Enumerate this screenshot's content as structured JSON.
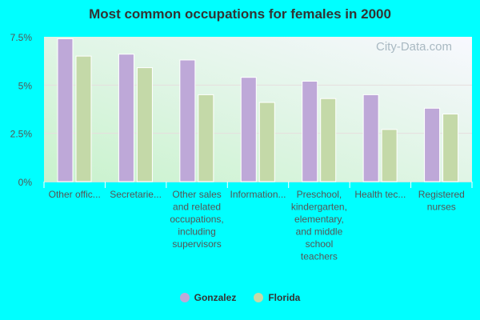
{
  "chart_data": {
    "type": "bar",
    "title": "Most common occupations for females in 2000",
    "categories": [
      "Other offic...",
      "Secretarie...",
      "Other sales and related occupations, including supervisors",
      "Information...",
      "Preschool, kindergarten, elementary, and middle school teachers",
      "Health tec...",
      "Registered nurses"
    ],
    "series": [
      {
        "name": "Gonzalez",
        "color": "#bea8d8",
        "values": [
          7.4,
          6.6,
          6.3,
          5.4,
          5.2,
          4.5,
          3.8
        ]
      },
      {
        "name": "Florida",
        "color": "#c4d9a8",
        "values": [
          6.5,
          5.9,
          4.5,
          4.1,
          4.3,
          2.7,
          3.5
        ]
      }
    ],
    "yticks": [
      "0%",
      "2.5%",
      "5%",
      "7.5%"
    ],
    "ylim": [
      0,
      7.5
    ],
    "grid": true,
    "legend": "bottom",
    "watermark": "City-Data.com"
  }
}
